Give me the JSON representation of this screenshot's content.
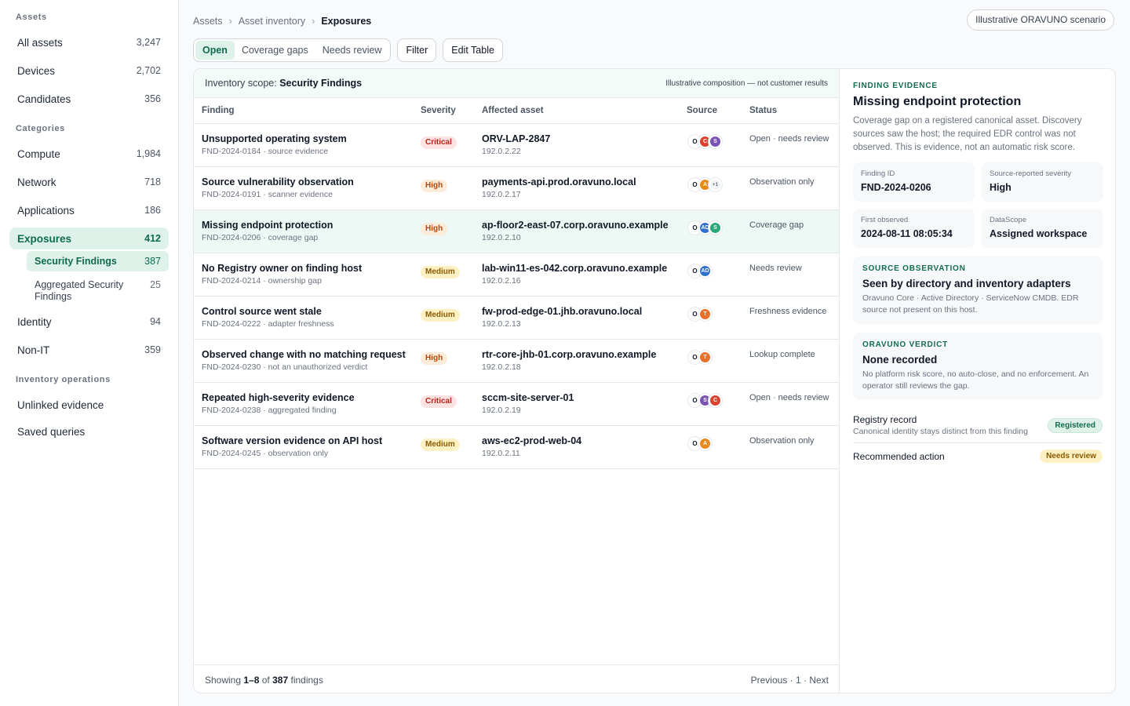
{
  "sidebar": {
    "sections": {
      "assets": "Assets",
      "categories": "Categories",
      "operations": "Inventory operations"
    },
    "asset_items": [
      {
        "label": "All assets",
        "count": "3,247"
      },
      {
        "label": "Devices",
        "count": "2,702"
      },
      {
        "label": "Candidates",
        "count": "356"
      }
    ],
    "category_items": [
      {
        "label": "Compute",
        "count": "1,984"
      },
      {
        "label": "Network",
        "count": "718"
      },
      {
        "label": "Applications",
        "count": "186"
      },
      {
        "label": "Exposures",
        "count": "412"
      }
    ],
    "exposure_subitems": [
      {
        "label": "Security Findings",
        "count": "387"
      },
      {
        "label": "Aggregated Security Findings",
        "count": "25"
      }
    ],
    "category_items_after": [
      {
        "label": "Identity",
        "count": "94"
      },
      {
        "label": "Non-IT",
        "count": "359"
      }
    ],
    "operation_items": [
      {
        "label": "Unlinked evidence"
      },
      {
        "label": "Saved queries"
      }
    ]
  },
  "breadcrumb": [
    "Assets",
    "Asset inventory",
    "Exposures"
  ],
  "breadcrumb_sep": "›",
  "scenario_badge": "Illustrative ORAVUNO scenario",
  "toolbar": {
    "tabs": [
      "Open",
      "Coverage gaps",
      "Needs review"
    ],
    "filter": "Filter",
    "edit_table": "Edit Table"
  },
  "scope": {
    "prefix": "Inventory scope:",
    "value": "Security Findings",
    "note": "Illustrative composition — not customer results"
  },
  "table": {
    "columns": [
      "Finding",
      "Severity",
      "Affected asset",
      "Source",
      "Status"
    ],
    "rows": [
      {
        "title": "Unsupported operating system",
        "sub": "FND-2024-0184 · source evidence",
        "severity": "Critical",
        "asset": "ORV-LAP-2847",
        "ip": "192.0.2.22",
        "sources": [
          "O",
          "C",
          "S"
        ],
        "status": "Open · needs review"
      },
      {
        "title": "Source vulnerability observation",
        "sub": "FND-2024-0191 · scanner evidence",
        "severity": "High",
        "asset": "payments-api.prod.oravuno.local",
        "ip": "192.0.2.17",
        "sources": [
          "O",
          "A",
          "+1"
        ],
        "status": "Observation only"
      },
      {
        "title": "Missing endpoint protection",
        "sub": "FND-2024-0206 · coverage gap",
        "severity": "High",
        "asset": "ap-floor2-east-07.corp.oravuno.example",
        "ip": "192.0.2.10",
        "sources": [
          "O",
          "AD",
          "S"
        ],
        "status": "Coverage gap"
      },
      {
        "title": "No Registry owner on finding host",
        "sub": "FND-2024-0214 · ownership gap",
        "severity": "Medium",
        "asset": "lab-win11-es-042.corp.oravuno.example",
        "ip": "192.0.2.16",
        "sources": [
          "O",
          "AD"
        ],
        "status": "Needs review"
      },
      {
        "title": "Control source went stale",
        "sub": "FND-2024-0222 · adapter freshness",
        "severity": "Medium",
        "asset": "fw-prod-edge-01.jhb.oravuno.local",
        "ip": "192.0.2.13",
        "sources": [
          "O",
          "T"
        ],
        "status": "Freshness evidence"
      },
      {
        "title": "Observed change with no matching request",
        "sub": "FND-2024-0230 · not an unauthorized verdict",
        "severity": "High",
        "asset": "rtr-core-jhb-01.corp.oravuno.example",
        "ip": "192.0.2.18",
        "sources": [
          "O",
          "T"
        ],
        "status": "Lookup complete"
      },
      {
        "title": "Repeated high-severity evidence",
        "sub": "FND-2024-0238 · aggregated finding",
        "severity": "Critical",
        "asset": "sccm-site-server-01",
        "ip": "192.0.2.19",
        "sources": [
          "O",
          "S",
          "C"
        ],
        "status": "Open · needs review"
      },
      {
        "title": "Software version evidence on API host",
        "sub": "FND-2024-0245 · observation only",
        "severity": "Medium",
        "asset": "aws-ec2-prod-web-04",
        "ip": "192.0.2.11",
        "sources": [
          "O",
          "A"
        ],
        "status": "Observation only"
      }
    ]
  },
  "footer": {
    "showing": "Showing",
    "range": "1–8",
    "of": "of",
    "total": "387",
    "unit": "findings",
    "pagination": "Previous · 1 · Next"
  },
  "evidence": {
    "kicker": "FINDING EVIDENCE",
    "title": "Missing endpoint protection",
    "description": "Coverage gap on a registered canonical asset. Discovery sources saw the host; the required EDR control was not observed. This is evidence, not an automatic risk score.",
    "fields": [
      {
        "label": "Finding ID",
        "value": "FND-2024-0206"
      },
      {
        "label": "Source-reported severity",
        "value": "High"
      },
      {
        "label": "First observed",
        "value": "2024-08-11 08:05:34"
      },
      {
        "label": "DataScope",
        "value": "Assigned workspace"
      }
    ],
    "source_obs": {
      "kicker": "SOURCE OBSERVATION",
      "heading": "Seen by directory and inventory adapters",
      "detail": "Oravuno Core · Active Directory · ServiceNow CMDB. EDR source not present on this host."
    },
    "verdict": {
      "kicker": "ORAVUNO VERDICT",
      "heading": "None recorded",
      "detail": "No platform risk score, no auto-close, and no enforcement. An operator still reviews the gap."
    },
    "registry": {
      "label": "Registry record",
      "sub": "Canonical identity stays distinct from this finding",
      "tag": "Registered"
    },
    "action": {
      "label": "Recommended action",
      "tag": "Needs review"
    }
  },
  "colors": {
    "accent": "#0f6b4d",
    "accent_bg": "#dff2ea",
    "critical": "#b42318",
    "high": "#b54708",
    "medium": "#8a5a00"
  }
}
